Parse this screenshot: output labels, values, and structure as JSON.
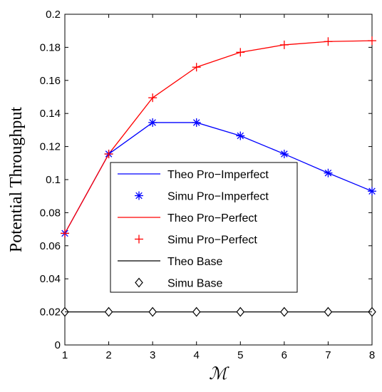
{
  "chart_data": {
    "type": "line",
    "xlabel": "ℳ",
    "ylabel": "Potential Throughput",
    "xlim": [
      1,
      8
    ],
    "ylim": [
      0,
      0.2
    ],
    "x_ticks": [
      "1",
      "2",
      "3",
      "4",
      "5",
      "6",
      "7",
      "8"
    ],
    "y_ticks": [
      "0",
      "0.02",
      "0.04",
      "0.06",
      "0.08",
      "0.1",
      "0.12",
      "0.14",
      "0.16",
      "0.18",
      "0.2"
    ],
    "grid": false,
    "legend_placement": "center-left",
    "x": [
      1,
      2,
      3,
      4,
      5,
      6,
      7,
      8
    ],
    "series": [
      {
        "name": "Theo Pro−Imperfect",
        "style": "line",
        "color": "#0000ff",
        "values": [
          0.0675,
          0.1155,
          0.1345,
          0.1345,
          0.1265,
          0.1155,
          0.104,
          0.093
        ]
      },
      {
        "name": "Simu Pro−Imperfect",
        "style": "asterisk",
        "color": "#0000ff",
        "values": [
          0.0675,
          0.1155,
          0.1345,
          0.1345,
          0.1265,
          0.1155,
          0.104,
          0.093
        ]
      },
      {
        "name": "Theo Pro−Perfect",
        "style": "line",
        "color": "#ff0000",
        "values": [
          0.0675,
          0.1155,
          0.1495,
          0.168,
          0.177,
          0.1815,
          0.1835,
          0.184
        ]
      },
      {
        "name": "Simu Pro−Perfect",
        "style": "plus",
        "color": "#ff0000",
        "values": [
          0.0675,
          0.1155,
          0.1495,
          0.168,
          0.177,
          0.1815,
          0.1835,
          0.184
        ]
      },
      {
        "name": "Theo Base",
        "style": "line",
        "color": "#000000",
        "values": [
          0.02,
          0.02,
          0.02,
          0.02,
          0.02,
          0.02,
          0.02,
          0.02
        ]
      },
      {
        "name": "Simu Base",
        "style": "diamond",
        "color": "#000000",
        "values": [
          0.02,
          0.02,
          0.02,
          0.02,
          0.02,
          0.02,
          0.02,
          0.02
        ]
      }
    ]
  }
}
